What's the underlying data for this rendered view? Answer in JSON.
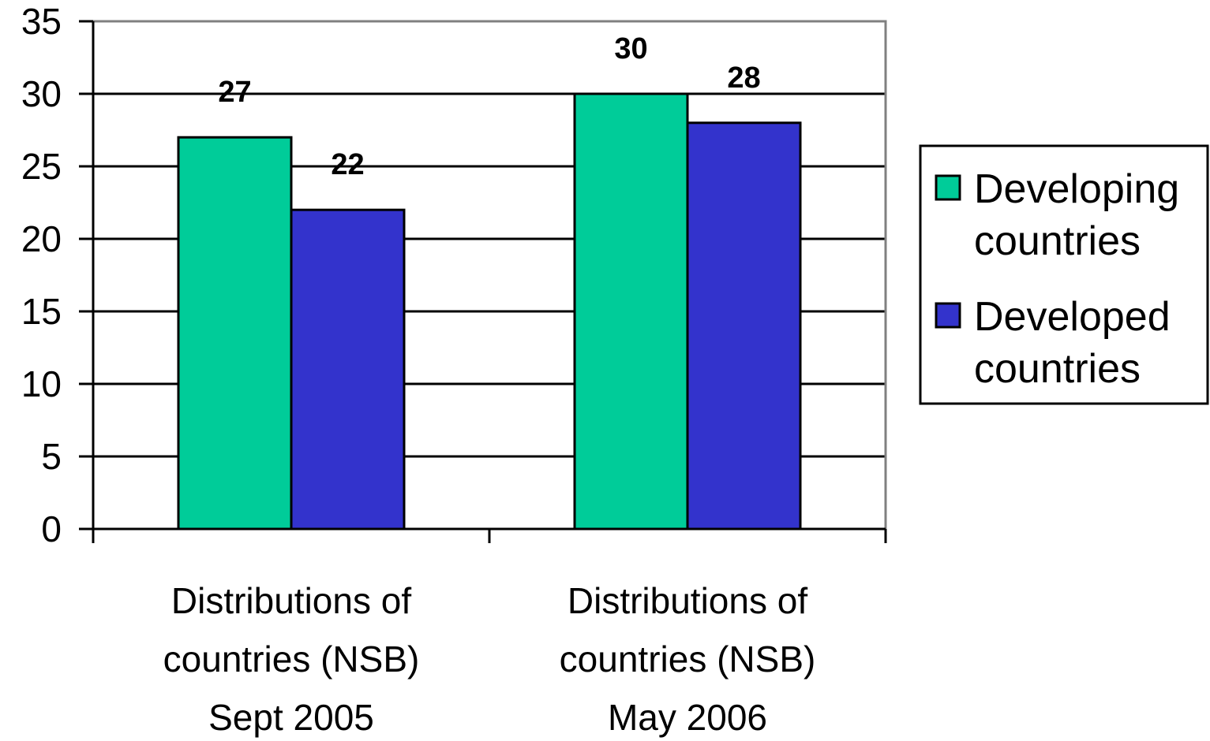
{
  "chart_data": {
    "type": "bar",
    "categories": [
      "Distributions of countries (NSB) Sept 2005",
      "Distributions of countries (NSB) May 2006"
    ],
    "category_lines": [
      [
        "Distributions of",
        "countries (NSB)",
        "Sept 2005"
      ],
      [
        "Distributions of",
        "countries (NSB)",
        "May 2006"
      ]
    ],
    "series": [
      {
        "name": "Developing countries",
        "name_lines": [
          "Developing",
          "countries"
        ],
        "values": [
          27,
          30
        ],
        "color": "#00CC99"
      },
      {
        "name": "Developed countries",
        "name_lines": [
          "Developed",
          "countries"
        ],
        "values": [
          22,
          28
        ],
        "color": "#3333CC"
      }
    ],
    "data_labels": [
      [
        "27",
        "30"
      ],
      [
        "22",
        "28"
      ]
    ],
    "ylim": [
      0,
      35
    ],
    "yticks": [
      0,
      5,
      10,
      15,
      20,
      25,
      30,
      35
    ],
    "title": "",
    "xlabel": "",
    "ylabel": "",
    "grid": true,
    "legend_position": "right"
  }
}
